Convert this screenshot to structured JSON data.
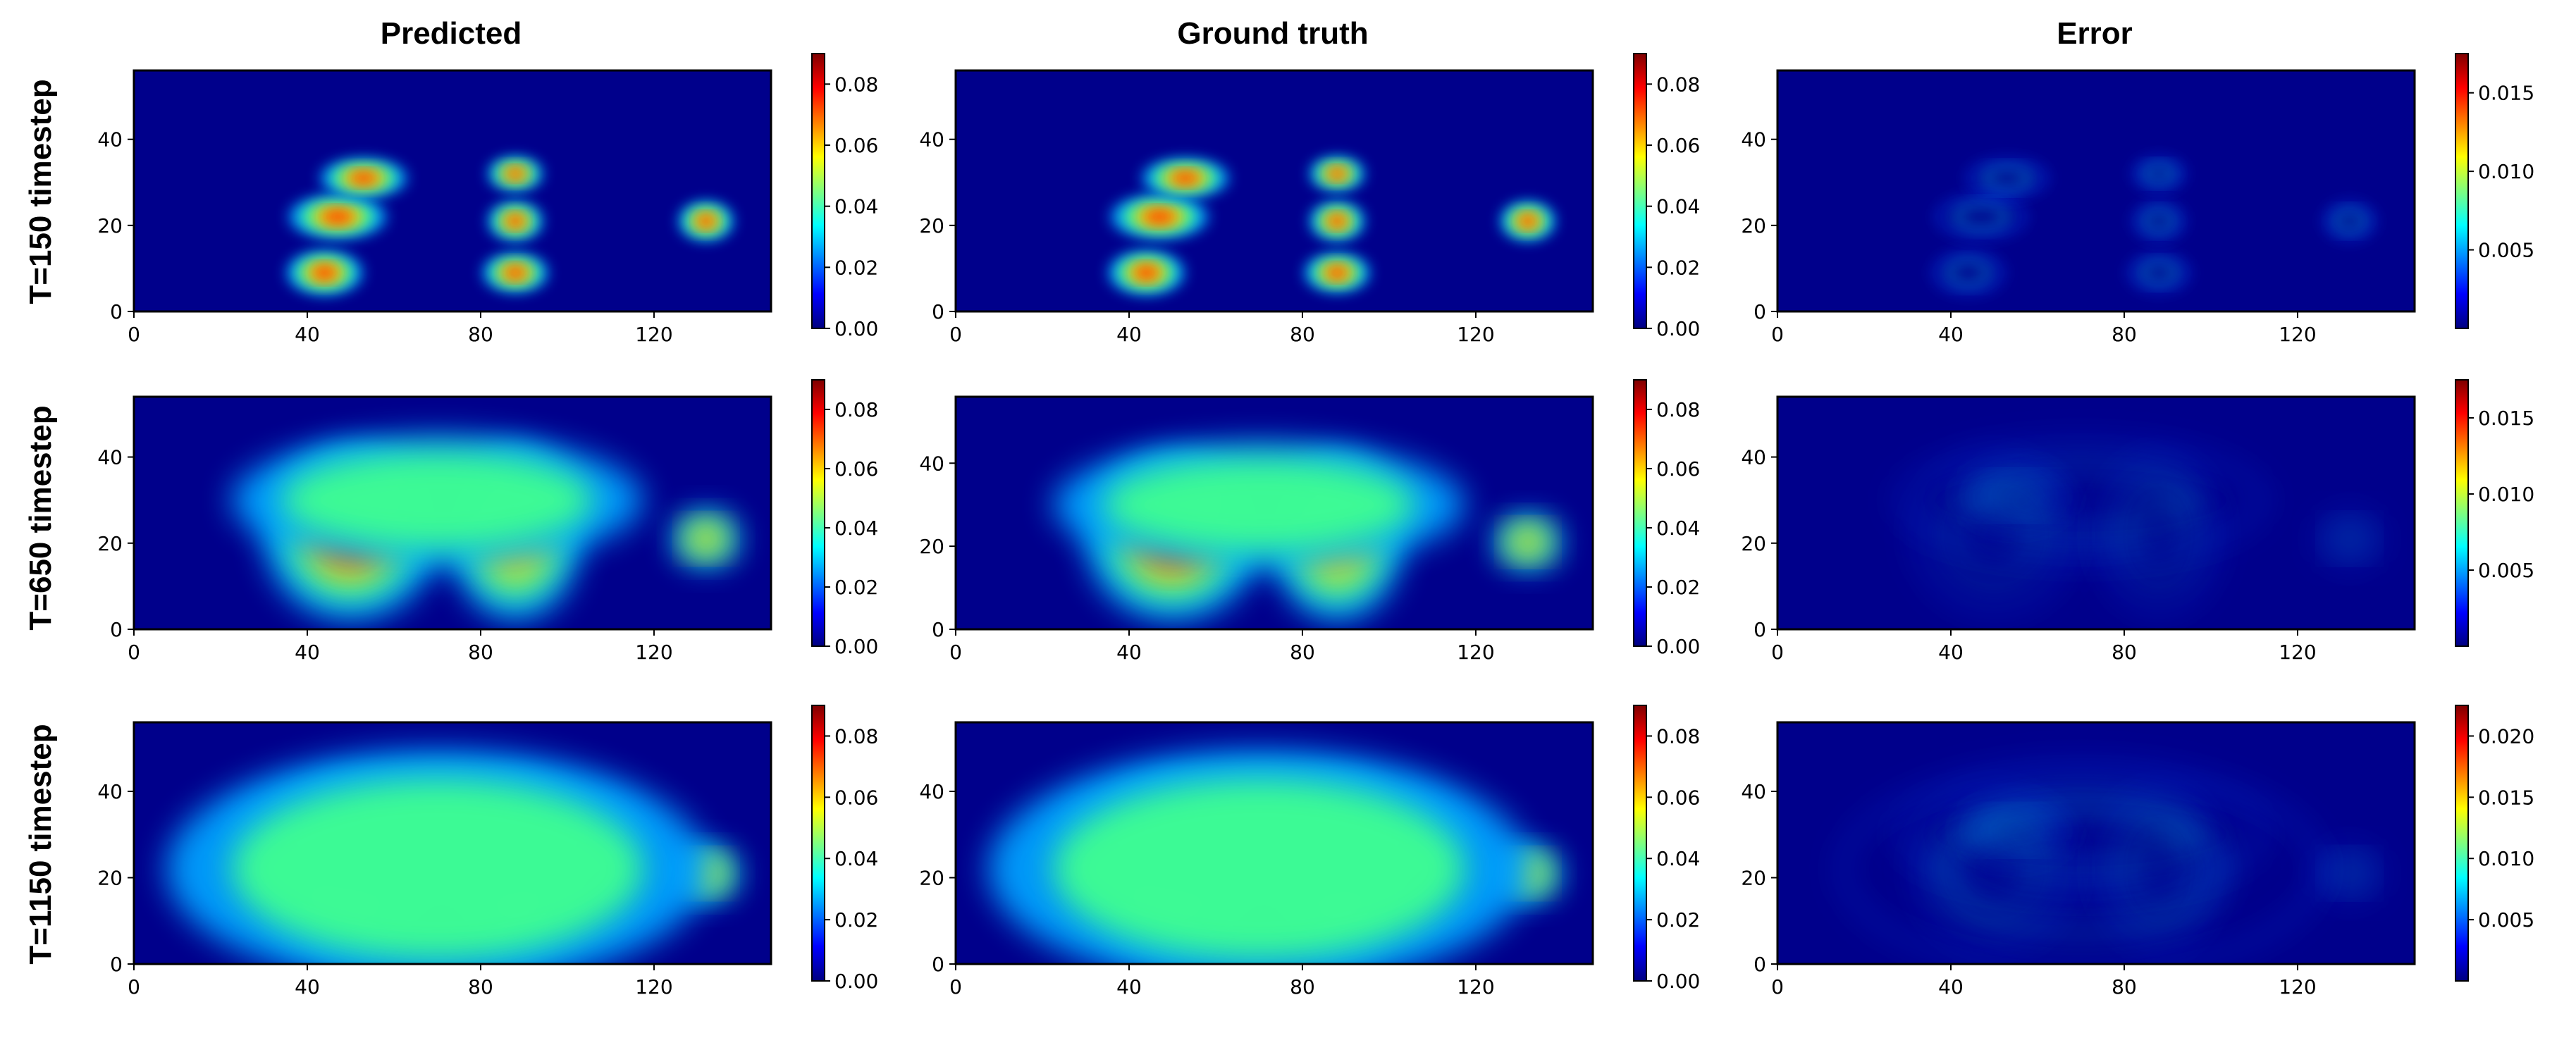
{
  "figure": {
    "column_titles": [
      "Predicted",
      "Ground truth",
      "Error"
    ],
    "row_labels": [
      "T=150 timestep",
      "T=650 timestep",
      "T=1150 timestep"
    ]
  },
  "colors": {
    "colormap": "jet",
    "jet_stops": [
      "#00007f",
      "#0000ff",
      "#007fff",
      "#00ffff",
      "#7fff7f",
      "#ffff00",
      "#ff7f00",
      "#ff0000",
      "#7f0000"
    ]
  },
  "chart_data": [
    {
      "type": "heatmap",
      "name": "Predicted",
      "row": "T=150 timestep",
      "xlim": [
        0,
        147
      ],
      "ylim": [
        0,
        56
      ],
      "xticks": [
        "0",
        "40",
        "80",
        "120"
      ],
      "xtick_values": [
        0,
        40,
        80,
        120
      ],
      "yticks": [
        "0",
        "20",
        "40"
      ],
      "ytick_values": [
        0,
        20,
        40
      ],
      "colorbar": {
        "range": [
          0.0,
          0.09
        ],
        "ticks": [
          "0.00",
          "0.02",
          "0.04",
          "0.06",
          "0.08"
        ],
        "tick_values": [
          0.0,
          0.02,
          0.04,
          0.06,
          0.08
        ]
      },
      "xlabel": "",
      "ylabel": "",
      "grid": false
    },
    {
      "type": "heatmap",
      "name": "Ground truth",
      "row": "T=150 timestep",
      "xlim": [
        0,
        147
      ],
      "ylim": [
        0,
        56
      ],
      "xticks": [
        "0",
        "40",
        "80",
        "120"
      ],
      "xtick_values": [
        0,
        40,
        80,
        120
      ],
      "yticks": [
        "0",
        "20",
        "40"
      ],
      "ytick_values": [
        0,
        20,
        40
      ],
      "colorbar": {
        "range": [
          0.0,
          0.09
        ],
        "ticks": [
          "0.00",
          "0.02",
          "0.04",
          "0.06",
          "0.08"
        ],
        "tick_values": [
          0.0,
          0.02,
          0.04,
          0.06,
          0.08
        ]
      },
      "xlabel": "",
      "ylabel": "",
      "grid": false
    },
    {
      "type": "heatmap",
      "name": "Error",
      "row": "T=150 timestep",
      "xlim": [
        0,
        147
      ],
      "ylim": [
        0,
        56
      ],
      "xticks": [
        "0",
        "40",
        "80",
        "120"
      ],
      "xtick_values": [
        0,
        40,
        80,
        120
      ],
      "yticks": [
        "0",
        "20",
        "40"
      ],
      "ytick_values": [
        0,
        20,
        40
      ],
      "colorbar": {
        "range": [
          0.0,
          0.0175
        ],
        "ticks": [
          "0.005",
          "0.010",
          "0.015"
        ],
        "tick_values": [
          0.005,
          0.01,
          0.015
        ]
      },
      "xlabel": "",
      "ylabel": "",
      "grid": false
    },
    {
      "type": "heatmap",
      "name": "Predicted",
      "row": "T=650 timestep",
      "xlim": [
        0,
        147
      ],
      "ylim": [
        0,
        54
      ],
      "xticks": [
        "0",
        "40",
        "80",
        "120"
      ],
      "xtick_values": [
        0,
        40,
        80,
        120
      ],
      "yticks": [
        "0",
        "20",
        "40"
      ],
      "ytick_values": [
        0,
        20,
        40
      ],
      "colorbar": {
        "range": [
          0.0,
          0.09
        ],
        "ticks": [
          "0.00",
          "0.02",
          "0.04",
          "0.06",
          "0.08"
        ],
        "tick_values": [
          0.0,
          0.02,
          0.04,
          0.06,
          0.08
        ]
      },
      "xlabel": "",
      "ylabel": "",
      "grid": false
    },
    {
      "type": "heatmap",
      "name": "Ground truth",
      "row": "T=650 timestep",
      "xlim": [
        0,
        147
      ],
      "ylim": [
        0,
        56
      ],
      "xticks": [
        "0",
        "40",
        "80",
        "120"
      ],
      "xtick_values": [
        0,
        40,
        80,
        120
      ],
      "yticks": [
        "0",
        "20",
        "40"
      ],
      "ytick_values": [
        0,
        20,
        40
      ],
      "colorbar": {
        "range": [
          0.0,
          0.09
        ],
        "ticks": [
          "0.00",
          "0.02",
          "0.04",
          "0.06",
          "0.08"
        ],
        "tick_values": [
          0.0,
          0.02,
          0.04,
          0.06,
          0.08
        ]
      },
      "xlabel": "",
      "ylabel": "",
      "grid": false
    },
    {
      "type": "heatmap",
      "name": "Error",
      "row": "T=650 timestep",
      "xlim": [
        0,
        147
      ],
      "ylim": [
        0,
        54
      ],
      "xticks": [
        "0",
        "40",
        "80",
        "120"
      ],
      "xtick_values": [
        0,
        40,
        80,
        120
      ],
      "yticks": [
        "0",
        "20",
        "40"
      ],
      "ytick_values": [
        0,
        20,
        40
      ],
      "colorbar": {
        "range": [
          0.0,
          0.0175
        ],
        "ticks": [
          "0.005",
          "0.010",
          "0.015"
        ],
        "tick_values": [
          0.005,
          0.01,
          0.015
        ]
      },
      "xlabel": "",
      "ylabel": "",
      "grid": false
    },
    {
      "type": "heatmap",
      "name": "Predicted",
      "row": "T=1150 timestep",
      "xlim": [
        0,
        147
      ],
      "ylim": [
        0,
        56
      ],
      "xticks": [
        "0",
        "40",
        "80",
        "120"
      ],
      "xtick_values": [
        0,
        40,
        80,
        120
      ],
      "yticks": [
        "0",
        "20",
        "40"
      ],
      "ytick_values": [
        0,
        20,
        40
      ],
      "colorbar": {
        "range": [
          0.0,
          0.09
        ],
        "ticks": [
          "0.00",
          "0.02",
          "0.04",
          "0.06",
          "0.08"
        ],
        "tick_values": [
          0.0,
          0.02,
          0.04,
          0.06,
          0.08
        ]
      },
      "xlabel": "",
      "ylabel": "",
      "grid": false
    },
    {
      "type": "heatmap",
      "name": "Ground truth",
      "row": "T=1150 timestep",
      "xlim": [
        0,
        147
      ],
      "ylim": [
        0,
        56
      ],
      "xticks": [
        "0",
        "40",
        "80",
        "120"
      ],
      "xtick_values": [
        0,
        40,
        80,
        120
      ],
      "yticks": [
        "0",
        "20",
        "40"
      ],
      "ytick_values": [
        0,
        20,
        40
      ],
      "colorbar": {
        "range": [
          0.0,
          0.09
        ],
        "ticks": [
          "0.00",
          "0.02",
          "0.04",
          "0.06",
          "0.08"
        ],
        "tick_values": [
          0.0,
          0.02,
          0.04,
          0.06,
          0.08
        ]
      },
      "xlabel": "",
      "ylabel": "",
      "grid": false
    },
    {
      "type": "heatmap",
      "name": "Error",
      "row": "T=1150 timestep",
      "xlim": [
        0,
        147
      ],
      "ylim": [
        0,
        56
      ],
      "xticks": [
        "0",
        "40",
        "80",
        "120"
      ],
      "xtick_values": [
        0,
        40,
        80,
        120
      ],
      "yticks": [
        "0",
        "20",
        "40"
      ],
      "ytick_values": [
        0,
        20,
        40
      ],
      "colorbar": {
        "range": [
          0.0,
          0.0225
        ],
        "ticks": [
          "0.005",
          "0.010",
          "0.015",
          "0.020"
        ],
        "tick_values": [
          0.005,
          0.01,
          0.015,
          0.02
        ]
      },
      "xlabel": "",
      "ylabel": "",
      "grid": false
    }
  ]
}
